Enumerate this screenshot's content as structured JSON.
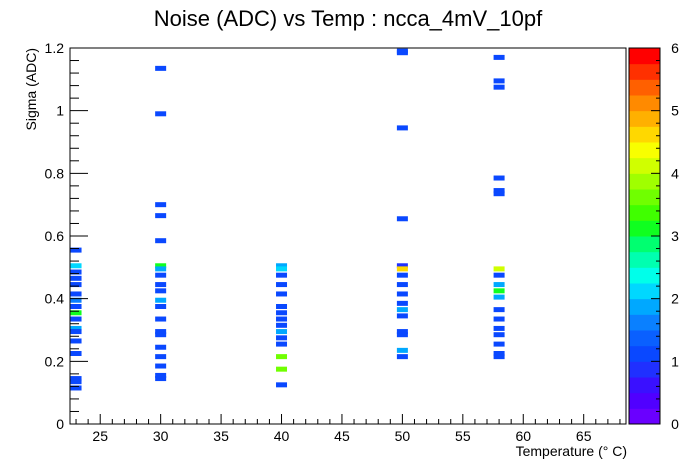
{
  "chart_data": {
    "type": "heatmap",
    "title": "Noise (ADC) vs Temp : ncca_4mV_10pf",
    "xlabel": "Temperature (° C)",
    "ylabel": "Sigma (ADC)",
    "xlim": [
      22.5,
      68.5
    ],
    "ylim": [
      0,
      1.2
    ],
    "zlim": [
      0,
      6
    ],
    "x_ticks": [
      25,
      30,
      35,
      40,
      45,
      50,
      55,
      60,
      65
    ],
    "y_ticks": [
      0,
      0.2,
      0.4,
      0.6,
      0.8,
      1,
      1.2
    ],
    "z_ticks": [
      0,
      1,
      2,
      3,
      4,
      5,
      6
    ],
    "grid": false,
    "colorbar": "right",
    "cells": [
      {
        "x": 23,
        "y": 0.555,
        "z": 1
      },
      {
        "x": 23,
        "y": 0.505,
        "z": 2
      },
      {
        "x": 23,
        "y": 0.485,
        "z": 1
      },
      {
        "x": 23,
        "y": 0.465,
        "z": 1
      },
      {
        "x": 23,
        "y": 0.445,
        "z": 1
      },
      {
        "x": 23,
        "y": 0.415,
        "z": 1
      },
      {
        "x": 23,
        "y": 0.395,
        "z": 1.5
      },
      {
        "x": 23,
        "y": 0.375,
        "z": 1
      },
      {
        "x": 23,
        "y": 0.355,
        "z": 3
      },
      {
        "x": 23,
        "y": 0.335,
        "z": 1
      },
      {
        "x": 23,
        "y": 0.305,
        "z": 1.8
      },
      {
        "x": 23,
        "y": 0.295,
        "z": 1
      },
      {
        "x": 23,
        "y": 0.265,
        "z": 1
      },
      {
        "x": 23,
        "y": 0.225,
        "z": 1
      },
      {
        "x": 23,
        "y": 0.145,
        "z": 1
      },
      {
        "x": 23,
        "y": 0.135,
        "z": 1
      },
      {
        "x": 23,
        "y": 0.115,
        "z": 1
      },
      {
        "x": 30,
        "y": 1.135,
        "z": 1
      },
      {
        "x": 30,
        "y": 0.99,
        "z": 1
      },
      {
        "x": 30,
        "y": 0.7,
        "z": 1
      },
      {
        "x": 30,
        "y": 0.665,
        "z": 1
      },
      {
        "x": 30,
        "y": 0.585,
        "z": 1
      },
      {
        "x": 30,
        "y": 0.505,
        "z": 3
      },
      {
        "x": 30,
        "y": 0.495,
        "z": 1.8
      },
      {
        "x": 30,
        "y": 0.475,
        "z": 1
      },
      {
        "x": 30,
        "y": 0.445,
        "z": 1
      },
      {
        "x": 30,
        "y": 0.425,
        "z": 1
      },
      {
        "x": 30,
        "y": 0.395,
        "z": 1.8
      },
      {
        "x": 30,
        "y": 0.375,
        "z": 1
      },
      {
        "x": 30,
        "y": 0.335,
        "z": 1
      },
      {
        "x": 30,
        "y": 0.295,
        "z": 1
      },
      {
        "x": 30,
        "y": 0.285,
        "z": 1
      },
      {
        "x": 30,
        "y": 0.245,
        "z": 1
      },
      {
        "x": 30,
        "y": 0.215,
        "z": 1
      },
      {
        "x": 30,
        "y": 0.185,
        "z": 1
      },
      {
        "x": 30,
        "y": 0.155,
        "z": 1
      },
      {
        "x": 30,
        "y": 0.145,
        "z": 1
      },
      {
        "x": 40,
        "y": 0.505,
        "z": 1.8
      },
      {
        "x": 40,
        "y": 0.495,
        "z": 2
      },
      {
        "x": 40,
        "y": 0.475,
        "z": 1
      },
      {
        "x": 40,
        "y": 0.445,
        "z": 1
      },
      {
        "x": 40,
        "y": 0.415,
        "z": 1
      },
      {
        "x": 40,
        "y": 0.375,
        "z": 1
      },
      {
        "x": 40,
        "y": 0.355,
        "z": 1
      },
      {
        "x": 40,
        "y": 0.335,
        "z": 1
      },
      {
        "x": 40,
        "y": 0.315,
        "z": 1
      },
      {
        "x": 40,
        "y": 0.295,
        "z": 1.8
      },
      {
        "x": 40,
        "y": 0.275,
        "z": 1
      },
      {
        "x": 40,
        "y": 0.255,
        "z": 1
      },
      {
        "x": 40,
        "y": 0.215,
        "z": 3.5
      },
      {
        "x": 40,
        "y": 0.175,
        "z": 3.5
      },
      {
        "x": 40,
        "y": 0.125,
        "z": 1
      },
      {
        "x": 50,
        "y": 1.19,
        "z": 1
      },
      {
        "x": 50,
        "y": 1.185,
        "z": 1
      },
      {
        "x": 50,
        "y": 0.945,
        "z": 1
      },
      {
        "x": 50,
        "y": 0.655,
        "z": 1
      },
      {
        "x": 50,
        "y": 0.505,
        "z": 0.8
      },
      {
        "x": 50,
        "y": 0.495,
        "z": 4.5
      },
      {
        "x": 50,
        "y": 0.475,
        "z": 1
      },
      {
        "x": 50,
        "y": 0.445,
        "z": 1
      },
      {
        "x": 50,
        "y": 0.415,
        "z": 1
      },
      {
        "x": 50,
        "y": 0.385,
        "z": 1
      },
      {
        "x": 50,
        "y": 0.365,
        "z": 1.8
      },
      {
        "x": 50,
        "y": 0.345,
        "z": 1
      },
      {
        "x": 50,
        "y": 0.295,
        "z": 1
      },
      {
        "x": 50,
        "y": 0.285,
        "z": 1
      },
      {
        "x": 50,
        "y": 0.235,
        "z": 1.8
      },
      {
        "x": 50,
        "y": 0.215,
        "z": 1
      },
      {
        "x": 58,
        "y": 1.17,
        "z": 1
      },
      {
        "x": 58,
        "y": 1.095,
        "z": 1
      },
      {
        "x": 58,
        "y": 1.075,
        "z": 1
      },
      {
        "x": 58,
        "y": 0.785,
        "z": 1
      },
      {
        "x": 58,
        "y": 0.745,
        "z": 1
      },
      {
        "x": 58,
        "y": 0.735,
        "z": 1
      },
      {
        "x": 58,
        "y": 0.495,
        "z": 4
      },
      {
        "x": 58,
        "y": 0.475,
        "z": 1
      },
      {
        "x": 58,
        "y": 0.445,
        "z": 1.8
      },
      {
        "x": 58,
        "y": 0.425,
        "z": 3.2
      },
      {
        "x": 58,
        "y": 0.405,
        "z": 1.8
      },
      {
        "x": 58,
        "y": 0.365,
        "z": 1
      },
      {
        "x": 58,
        "y": 0.335,
        "z": 1
      },
      {
        "x": 58,
        "y": 0.305,
        "z": 1
      },
      {
        "x": 58,
        "y": 0.285,
        "z": 1
      },
      {
        "x": 58,
        "y": 0.255,
        "z": 1
      },
      {
        "x": 58,
        "y": 0.225,
        "z": 1
      },
      {
        "x": 58,
        "y": 0.215,
        "z": 1
      }
    ]
  }
}
